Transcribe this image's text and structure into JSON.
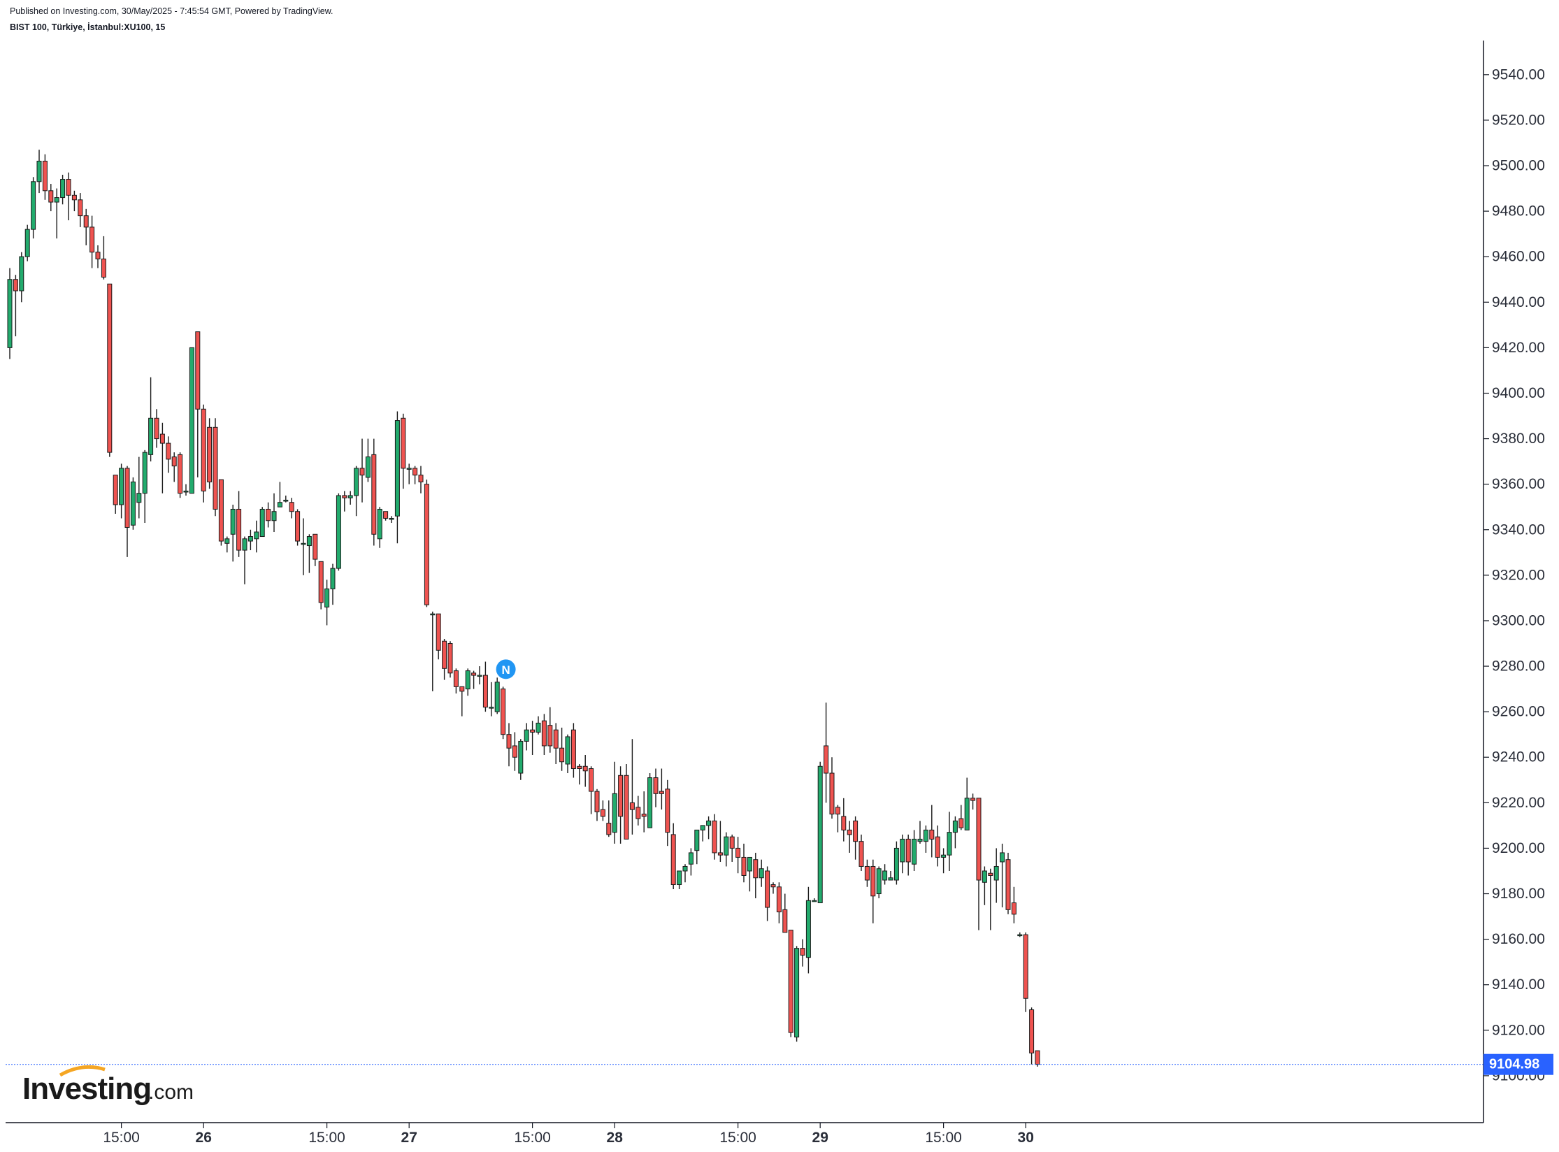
{
  "header": {
    "published": "Published on Investing.com, 30/May/2025 - 7:45:54 GMT, Powered by TradingView.",
    "symbol": "BIST 100, Türkiye, İstanbul:XU100, 15"
  },
  "branding": {
    "logo_main": "Investing",
    "logo_tld": ".com"
  },
  "colors": {
    "up": "#22ab6d",
    "down": "#ef5350",
    "wick": "#1a1a1a",
    "price_line": "#2962ff",
    "news_badge": "#2196f3",
    "axis": "#131722"
  },
  "icons": {
    "news_marker": "news-icon",
    "news_label": "N"
  },
  "chart_data": {
    "type": "candlestick",
    "ylim": [
      9080,
      9555
    ],
    "y_ticks": [
      "9540.00",
      "9520.00",
      "9500.00",
      "9480.00",
      "9460.00",
      "9440.00",
      "9420.00",
      "9400.00",
      "9380.00",
      "9360.00",
      "9340.00",
      "9320.00",
      "9300.00",
      "9280.00",
      "9260.00",
      "9240.00",
      "9220.00",
      "9200.00",
      "9180.00",
      "9160.00",
      "9140.00",
      "9120.00",
      "9100.00"
    ],
    "x_ticks": [
      {
        "label": "15:00",
        "bar": 19,
        "day": false
      },
      {
        "label": "26",
        "bar": 33,
        "day": true
      },
      {
        "label": "15:00",
        "bar": 54,
        "day": false
      },
      {
        "label": "27",
        "bar": 68,
        "day": true
      },
      {
        "label": "15:00",
        "bar": 89,
        "day": false
      },
      {
        "label": "28",
        "bar": 103,
        "day": true
      },
      {
        "label": "15:00",
        "bar": 124,
        "day": false
      },
      {
        "label": "29",
        "bar": 138,
        "day": true
      },
      {
        "label": "15:00",
        "bar": 159,
        "day": false
      },
      {
        "label": "30",
        "bar": 173,
        "day": true
      }
    ],
    "last_price": "9104.98",
    "news_marker_bar": 84,
    "candles": [
      [
        9420,
        9450,
        9415,
        9455
      ],
      [
        9450,
        9445,
        9425,
        9452
      ],
      [
        9445,
        9460,
        9440,
        9462
      ],
      [
        9460,
        9472,
        9458,
        9474
      ],
      [
        9472,
        9493,
        9468,
        9495
      ],
      [
        9493,
        9502,
        9488,
        9507
      ],
      [
        9502,
        9489,
        9485,
        9505
      ],
      [
        9489,
        9484,
        9480,
        9492
      ],
      [
        9484,
        9486,
        9468,
        9490
      ],
      [
        9486,
        9494,
        9483,
        9496
      ],
      [
        9494,
        9487,
        9476,
        9497
      ],
      [
        9487,
        9485,
        9480,
        9489
      ],
      [
        9485,
        9478,
        9473,
        9488
      ],
      [
        9478,
        9473,
        9465,
        9481
      ],
      [
        9473,
        9462,
        9455,
        9478
      ],
      [
        9462,
        9459,
        9455,
        9465
      ],
      [
        9459,
        9451,
        9450,
        9469
      ],
      [
        9448,
        9374,
        9372,
        9448
      ],
      [
        9364,
        9351,
        9347,
        9364
      ],
      [
        9351,
        9367,
        9345,
        9369
      ],
      [
        9367,
        9341,
        9328,
        9368
      ],
      [
        9342,
        9361,
        9340,
        9363
      ],
      [
        9352,
        9356,
        9345,
        9372
      ],
      [
        9356,
        9374,
        9343,
        9375
      ],
      [
        9373,
        9389,
        9370,
        9407
      ],
      [
        9389,
        9380,
        9376,
        9393
      ],
      [
        9382,
        9378,
        9356,
        9387
      ],
      [
        9378,
        9371,
        9365,
        9381
      ],
      [
        9372,
        9368,
        9361,
        9374
      ],
      [
        9373,
        9356,
        9354,
        9374
      ],
      [
        9357,
        9357,
        9355,
        9360
      ],
      [
        9356,
        9420,
        9356,
        9420
      ],
      [
        9427,
        9393,
        9363,
        9427
      ],
      [
        9393,
        9357,
        9352,
        9395
      ],
      [
        9385,
        9361,
        9358,
        9389
      ],
      [
        9385,
        9349,
        9346,
        9389
      ],
      [
        9362,
        9335,
        9333,
        9362
      ],
      [
        9334,
        9336,
        9330,
        9337
      ],
      [
        9338,
        9349,
        9326,
        9351
      ],
      [
        9349,
        9331,
        9328,
        9357
      ],
      [
        9331,
        9336,
        9316,
        9337
      ],
      [
        9335,
        9337,
        9331,
        9340
      ],
      [
        9336,
        9339,
        9330,
        9344
      ],
      [
        9337,
        9349,
        9337,
        9350
      ],
      [
        9349,
        9344,
        9341,
        9352
      ],
      [
        9344,
        9348,
        9339,
        9356
      ],
      [
        9350,
        9352,
        9352,
        9361
      ],
      [
        9353,
        9353,
        9352,
        9355
      ],
      [
        9352,
        9348,
        9345,
        9354
      ],
      [
        9348,
        9335,
        9333,
        9349
      ],
      [
        9334,
        9334,
        9320,
        9345
      ],
      [
        9333,
        9337,
        9321,
        9338
      ],
      [
        9338,
        9327,
        9324,
        9338
      ],
      [
        9326,
        9308,
        9305,
        9326
      ],
      [
        9306,
        9314,
        9298,
        9318
      ],
      [
        9314,
        9323,
        9307,
        9325
      ],
      [
        9323,
        9355,
        9322,
        9356
      ],
      [
        9355,
        9354,
        9348,
        9357
      ],
      [
        9354,
        9355,
        9351,
        9357
      ],
      [
        9355,
        9367,
        9346,
        9368
      ],
      [
        9367,
        9364,
        9352,
        9380
      ],
      [
        9363,
        9372,
        9361,
        9380
      ],
      [
        9373,
        9338,
        9333,
        9380
      ],
      [
        9336,
        9349,
        9332,
        9350
      ],
      [
        9348,
        9345,
        9344,
        9348
      ],
      [
        9345,
        9345,
        9343,
        9346
      ],
      [
        9346,
        9388,
        9334,
        9392
      ],
      [
        9389,
        9367,
        9358,
        9391
      ],
      [
        9367,
        9367,
        9360,
        9369
      ],
      [
        9367,
        9364,
        9360,
        9368
      ],
      [
        9364,
        9361,
        9356,
        9368
      ],
      [
        9360,
        9307,
        9306,
        9362
      ],
      [
        9303,
        9303,
        9269,
        9304
      ],
      [
        9303,
        9287,
        9283,
        9303
      ],
      [
        9291,
        9279,
        9274,
        9292
      ],
      [
        9290,
        9277,
        9275,
        9291
      ],
      [
        9278,
        9271,
        9268,
        9279
      ],
      [
        9271,
        9269,
        9258,
        9271
      ],
      [
        9270,
        9278,
        9267,
        9279
      ],
      [
        9277,
        9276,
        9270,
        9278
      ],
      [
        9276,
        9276,
        9272,
        9280
      ],
      [
        9276,
        9262,
        9260,
        9282
      ],
      [
        9262,
        9262,
        9258,
        9273
      ],
      [
        9260,
        9273,
        9259,
        9275
      ],
      [
        9270,
        9250,
        9248,
        9271
      ],
      [
        9250,
        9244,
        9236,
        9255
      ],
      [
        9245,
        9240,
        9234,
        9251
      ],
      [
        9233,
        9247,
        9230,
        9248
      ],
      [
        9247,
        9252,
        9243,
        9255
      ],
      [
        9252,
        9251,
        9241,
        9256
      ],
      [
        9251,
        9255,
        9250,
        9258
      ],
      [
        9256,
        9245,
        9241,
        9259
      ],
      [
        9254,
        9245,
        9242,
        9262
      ],
      [
        9252,
        9244,
        9237,
        9255
      ],
      [
        9244,
        9238,
        9234,
        9253
      ],
      [
        9237,
        9249,
        9233,
        9250
      ],
      [
        9252,
        9235,
        9231,
        9255
      ],
      [
        9236,
        9235,
        9228,
        9237
      ],
      [
        9236,
        9234,
        9227,
        9241
      ],
      [
        9235,
        9225,
        9215,
        9236
      ],
      [
        9225,
        9216,
        9212,
        9226
      ],
      [
        9217,
        9214,
        9212,
        9221
      ],
      [
        9211,
        9206,
        9205,
        9221
      ],
      [
        9207,
        9224,
        9202,
        9238
      ],
      [
        9232,
        9214,
        9202,
        9236
      ],
      [
        9232,
        9204,
        9204,
        9237
      ],
      [
        9220,
        9217,
        9206,
        9248
      ],
      [
        9218,
        9213,
        9210,
        9223
      ],
      [
        9215,
        9214,
        9207,
        9225
      ],
      [
        9209,
        9231,
        9209,
        9233
      ],
      [
        9231,
        9224,
        9218,
        9235
      ],
      [
        9225,
        9224,
        9217,
        9235
      ],
      [
        9226,
        9207,
        9201,
        9230
      ],
      [
        9206,
        9184,
        9182,
        9211
      ],
      [
        9184,
        9190,
        9182,
        9190
      ],
      [
        9190,
        9192,
        9185,
        9193
      ],
      [
        9193,
        9198,
        9188,
        9200
      ],
      [
        9199,
        9208,
        9193,
        9208
      ],
      [
        9208,
        9210,
        9203,
        9210
      ],
      [
        9210,
        9212,
        9204,
        9214
      ],
      [
        9212,
        9198,
        9195,
        9215
      ],
      [
        9198,
        9197,
        9194,
        9212
      ],
      [
        9197,
        9205,
        9192,
        9207
      ],
      [
        9205,
        9200,
        9194,
        9206
      ],
      [
        9200,
        9196,
        9189,
        9205
      ],
      [
        9196,
        9188,
        9185,
        9202
      ],
      [
        9190,
        9196,
        9181,
        9196
      ],
      [
        9195,
        9187,
        9178,
        9198
      ],
      [
        9187,
        9191,
        9183,
        9195
      ],
      [
        9190,
        9174,
        9168,
        9192
      ],
      [
        9184,
        9183,
        9180,
        9185
      ],
      [
        9183,
        9172,
        9167,
        9185
      ],
      [
        9173,
        9163,
        9163,
        9180
      ],
      [
        9164,
        9119,
        9117,
        9164
      ],
      [
        9117,
        9156,
        9115,
        9157
      ],
      [
        9156,
        9153,
        9148,
        9160
      ],
      [
        9152,
        9177,
        9145,
        9183
      ],
      [
        9177,
        9177,
        9177,
        9178
      ],
      [
        9176,
        9236,
        9176,
        9238
      ],
      [
        9245,
        9233,
        9220,
        9264
      ],
      [
        9233,
        9215,
        9213,
        9240
      ],
      [
        9218,
        9215,
        9207,
        9219
      ],
      [
        9214,
        9208,
        9203,
        9222
      ],
      [
        9208,
        9206,
        9198,
        9212
      ],
      [
        9212,
        9203,
        9195,
        9214
      ],
      [
        9203,
        9192,
        9190,
        9206
      ],
      [
        9192,
        9186,
        9183,
        9195
      ],
      [
        9192,
        9179,
        9167,
        9195
      ],
      [
        9180,
        9191,
        9178,
        9192
      ],
      [
        9186,
        9190,
        9184,
        9193
      ],
      [
        9186,
        9187,
        9186,
        9190
      ],
      [
        9186,
        9200,
        9184,
        9203
      ],
      [
        9194,
        9204,
        9189,
        9206
      ],
      [
        9204,
        9194,
        9188,
        9206
      ],
      [
        9193,
        9204,
        9190,
        9208
      ],
      [
        9203,
        9204,
        9202,
        9212
      ],
      [
        9203,
        9208,
        9198,
        9210
      ],
      [
        9208,
        9204,
        9196,
        9219
      ],
      [
        9205,
        9196,
        9192,
        9210
      ],
      [
        9196,
        9197,
        9189,
        9200
      ],
      [
        9197,
        9207,
        9190,
        9216
      ],
      [
        9207,
        9212,
        9200,
        9214
      ],
      [
        9213,
        9209,
        9208,
        9219
      ],
      [
        9208,
        9222,
        9208,
        9231
      ],
      [
        9222,
        9221,
        9217,
        9224
      ],
      [
        9222,
        9186,
        9164,
        9222
      ],
      [
        9185,
        9190,
        9175,
        9192
      ],
      [
        9189,
        9188,
        9164,
        9191
      ],
      [
        9186,
        9192,
        9176,
        9200
      ],
      [
        9194,
        9198,
        9174,
        9202
      ],
      [
        9195,
        9173,
        9171,
        9198
      ],
      [
        9176,
        9171,
        9167,
        9183
      ],
      [
        9162,
        9162,
        9161,
        9163
      ],
      [
        9162,
        9134,
        9128,
        9163
      ],
      [
        9129,
        9110,
        9105,
        9130
      ],
      [
        9111,
        9105,
        9104,
        9111
      ]
    ]
  }
}
